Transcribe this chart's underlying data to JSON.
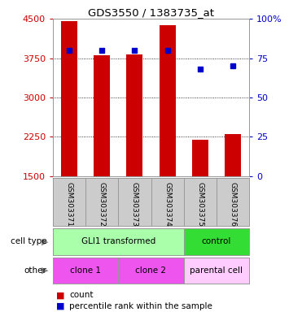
{
  "title": "GDS3550 / 1383735_at",
  "samples": [
    "GSM303371",
    "GSM303372",
    "GSM303373",
    "GSM303374",
    "GSM303375",
    "GSM303376"
  ],
  "counts": [
    4450,
    3800,
    3820,
    4380,
    2200,
    2300
  ],
  "percentiles": [
    80,
    80,
    80,
    80,
    68,
    70
  ],
  "ymin": 1500,
  "ymax": 4500,
  "yticks": [
    1500,
    2250,
    3000,
    3750,
    4500
  ],
  "ytick_labels": [
    "1500",
    "2250",
    "3000",
    "3750",
    "4500"
  ],
  "right_yticks": [
    0,
    25,
    50,
    75,
    100
  ],
  "right_ytick_labels": [
    "0",
    "25",
    "50",
    "75",
    "100%"
  ],
  "bar_color": "#cc0000",
  "dot_color": "#0000cc",
  "cell_type_groups": [
    {
      "label": "GLI1 transformed",
      "start": 0,
      "end": 4,
      "color": "#aaffaa"
    },
    {
      "label": "control",
      "start": 4,
      "end": 6,
      "color": "#33dd33"
    }
  ],
  "other_groups": [
    {
      "label": "clone 1",
      "start": 0,
      "end": 2,
      "color": "#ee55ee"
    },
    {
      "label": "clone 2",
      "start": 2,
      "end": 4,
      "color": "#ee55ee"
    },
    {
      "label": "parental cell",
      "start": 4,
      "end": 6,
      "color": "#ffccff"
    }
  ],
  "cell_type_row_label": "cell type",
  "other_row_label": "other",
  "legend_count_label": "count",
  "legend_percentile_label": "percentile rank within the sample",
  "left_axis_color": "#cc0000",
  "right_axis_color": "#0000cc"
}
